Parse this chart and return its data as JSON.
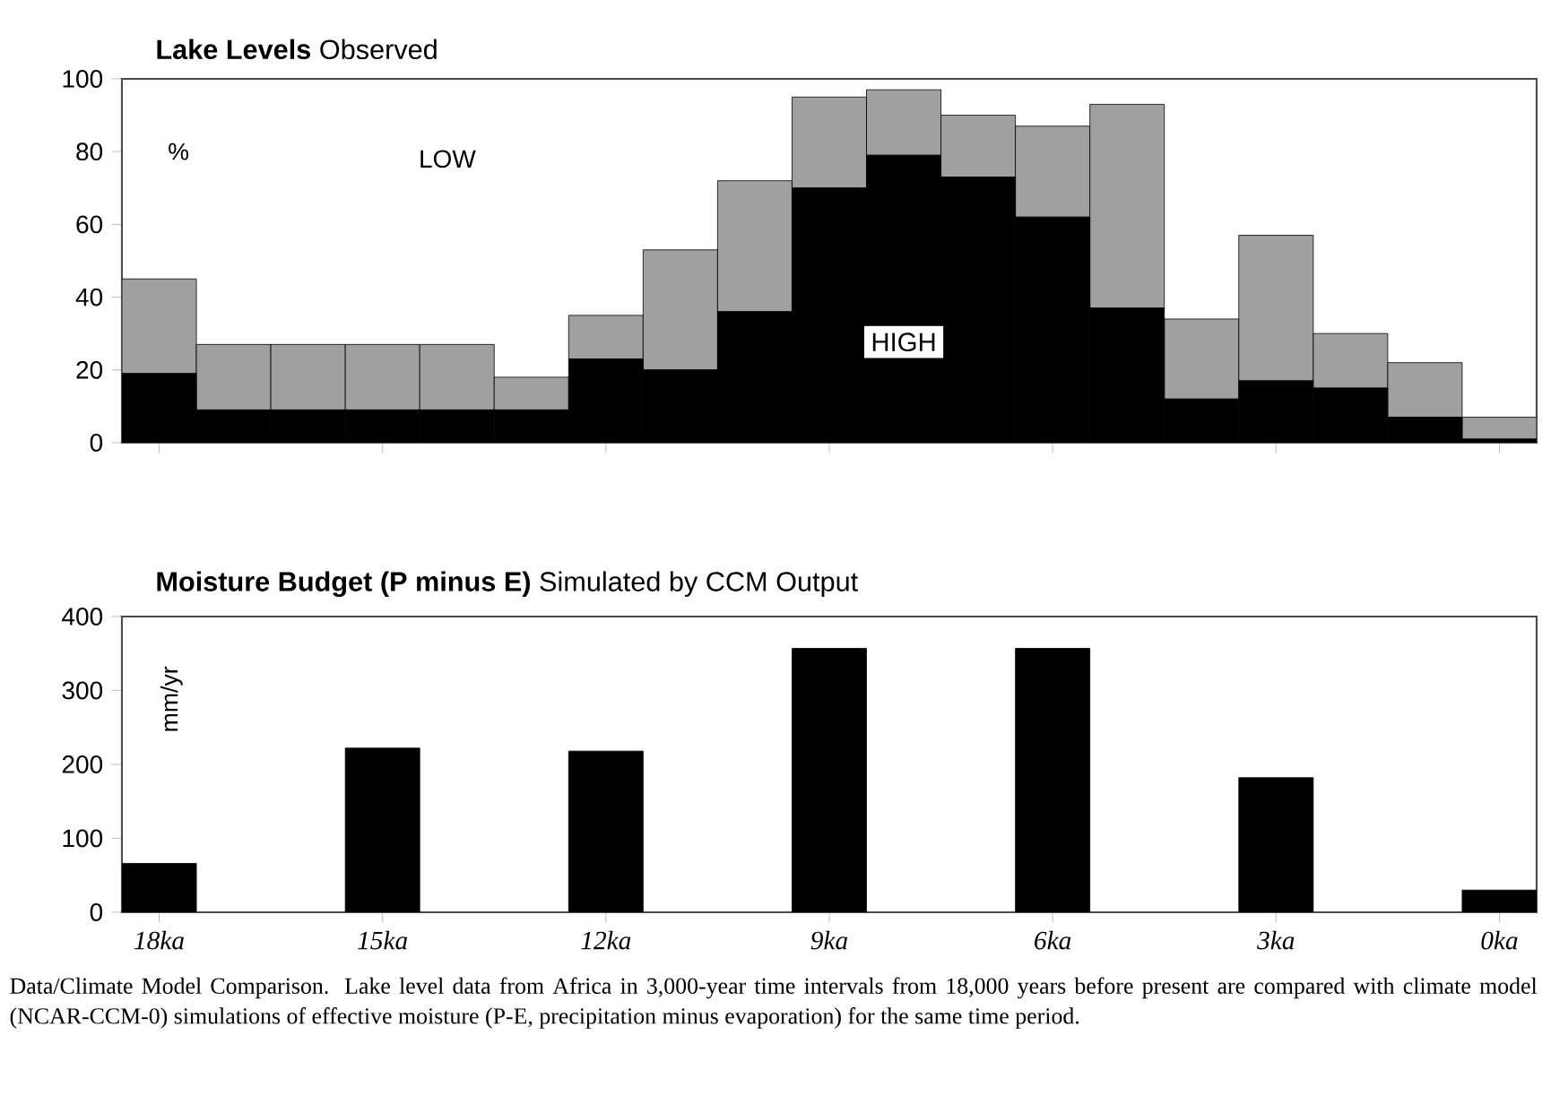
{
  "chart_data": [
    {
      "type": "bar",
      "title": "**Lake Levels** Observed",
      "ylabel": "%",
      "stacked": true,
      "x": [
        18,
        17,
        16,
        15,
        14,
        13,
        12,
        11,
        10,
        9,
        8,
        7,
        6,
        5,
        4,
        3,
        2,
        1,
        0
      ],
      "xlim": [
        18.5,
        -0.5
      ],
      "xticks": [
        {
          "value": 18,
          "label": null
        },
        {
          "value": 15,
          "label": null
        },
        {
          "value": 12,
          "label": null
        },
        {
          "value": 9,
          "label": null
        },
        {
          "value": 6,
          "label": null
        },
        {
          "value": 3,
          "label": null
        },
        {
          "value": 0,
          "label": null
        }
      ],
      "ylim": [
        0,
        100
      ],
      "yticks": [
        0,
        20,
        40,
        60,
        80,
        100
      ],
      "tick_labels": "y",
      "annotations": [
        "LOW"
      ],
      "series": [
        {
          "name": "HIGH",
          "color": "#000000",
          "values": [
            19,
            9,
            9,
            9,
            9,
            9,
            23,
            20,
            36,
            70,
            79,
            73,
            62,
            37,
            12,
            17,
            15,
            7,
            1
          ]
        },
        {
          "color": "#a0a0a0",
          "values": [
            26,
            18,
            18,
            18,
            18,
            9,
            12,
            33,
            36,
            25,
            18,
            17,
            25,
            56,
            22,
            40,
            15,
            15,
            6
          ]
        }
      ]
    },
    {
      "type": "bar",
      "title": "**Moisture Budget (P minus E)** Simulated by CCM Output",
      "ylabel": "mm/yr",
      "x": [
        18,
        15,
        12,
        9,
        6,
        3,
        0
      ],
      "xlim": [
        18.5,
        -0.5
      ],
      "xticks": [
        {
          "value": 18,
          "label": "18ka"
        },
        {
          "value": 15,
          "label": "15ka"
        },
        {
          "value": 12,
          "label": "12ka"
        },
        {
          "value": 9,
          "label": "9ka"
        },
        {
          "value": 6,
          "label": "6ka"
        },
        {
          "value": 3,
          "label": "3ka"
        },
        {
          "value": 0,
          "label": "0ka"
        }
      ],
      "ylim": [
        0,
        400
      ],
      "yticks": [
        0,
        100,
        200,
        300,
        400
      ],
      "annotations": [
        "Data/Climate Model Comparison. Lake level data from Africa in 3,000-year time intervals from 18,000 years before present are compared with climate model (NCAR-CCM-0) simulations of effective moisture (P-E, precipitation minus evaporation) for the same time period."
      ],
      "series": [
        {
          "color": "#000000",
          "values": [
            66,
            222,
            218,
            357,
            357,
            182,
            30
          ]
        }
      ]
    }
  ]
}
